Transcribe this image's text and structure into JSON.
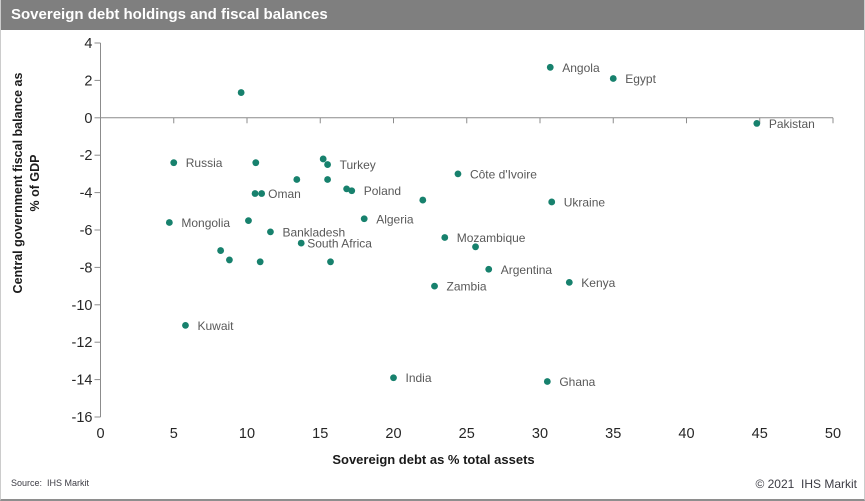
{
  "header": {
    "title": "Sovereign debt holdings and fiscal balances"
  },
  "footer": {
    "source": "Source:  IHS Markit",
    "copyright": "© 2021  IHS Markit"
  },
  "colors": {
    "titlebar_bg": "#7f7f7f",
    "titlebar_text": "#ffffff",
    "dot": "#17816d",
    "axis_line": "#8c8c8c",
    "tick_label": "#262626",
    "point_label": "#595959"
  },
  "chart_data": {
    "type": "scatter",
    "title": "Sovereign debt holdings and fiscal balances",
    "xlabel": "Sovereign debt as % total assets",
    "ylabel": "Central government fiscal balance as % of GDP",
    "ylabel_lines": [
      "Central government fiscal balance as",
      "% of GDP"
    ],
    "xlim": [
      0,
      50
    ],
    "ylim": [
      -16,
      4
    ],
    "xticks": [
      0,
      5,
      10,
      15,
      20,
      25,
      30,
      35,
      40,
      45,
      50
    ],
    "yticks": [
      4,
      2,
      0,
      -2,
      -4,
      -6,
      -8,
      -10,
      -12,
      -14,
      -16
    ],
    "grid": false,
    "legend": false,
    "points": [
      {
        "label": "",
        "x": 9.6,
        "y": 1.35
      },
      {
        "label": "Angola",
        "x": 30.7,
        "y": 2.7
      },
      {
        "label": "Egypt",
        "x": 35.0,
        "y": 2.1
      },
      {
        "label": "Pakistan",
        "x": 44.8,
        "y": -0.3
      },
      {
        "label": "Russia",
        "x": 5.0,
        "y": -2.4
      },
      {
        "label": "",
        "x": 10.6,
        "y": -2.4
      },
      {
        "label": "",
        "x": 15.2,
        "y": -2.2
      },
      {
        "label": "Turkey",
        "x": 15.5,
        "y": -2.5
      },
      {
        "label": "Côte d'Ivoire",
        "x": 24.4,
        "y": -3.0
      },
      {
        "label": "",
        "x": 13.4,
        "y": -3.3
      },
      {
        "label": "",
        "x": 15.5,
        "y": -3.3
      },
      {
        "label": "",
        "x": 10.55,
        "y": -4.05
      },
      {
        "label": "Oman",
        "x": 11.0,
        "y": -4.05,
        "dx": 6.5
      },
      {
        "label": "",
        "x": 16.8,
        "y": -3.8
      },
      {
        "label": "Poland",
        "x": 17.15,
        "y": -3.9
      },
      {
        "label": "",
        "x": 22.0,
        "y": -4.4
      },
      {
        "label": "Ukraine",
        "x": 30.8,
        "y": -4.5
      },
      {
        "label": "Mongolia",
        "x": 4.7,
        "y": -5.6
      },
      {
        "label": "",
        "x": 10.1,
        "y": -5.5
      },
      {
        "label": "Algeria",
        "x": 18.0,
        "y": -5.4
      },
      {
        "label": "Bankladesh",
        "x": 11.6,
        "y": -6.1
      },
      {
        "label": "Mozambique",
        "x": 23.5,
        "y": -6.4
      },
      {
        "label": "",
        "x": 25.6,
        "y": -6.9
      },
      {
        "label": "South Africa",
        "x": 13.7,
        "y": -6.7,
        "dx": 6
      },
      {
        "label": "",
        "x": 8.2,
        "y": -7.1
      },
      {
        "label": "",
        "x": 8.8,
        "y": -7.6
      },
      {
        "label": "",
        "x": 10.9,
        "y": -7.7
      },
      {
        "label": "",
        "x": 15.7,
        "y": -7.7
      },
      {
        "label": "Argentina",
        "x": 26.5,
        "y": -8.1
      },
      {
        "label": "Zambia",
        "x": 22.8,
        "y": -9.0
      },
      {
        "label": "Kenya",
        "x": 32.0,
        "y": -8.8
      },
      {
        "label": "Kuwait",
        "x": 5.8,
        "y": -11.1
      },
      {
        "label": "India",
        "x": 20.0,
        "y": -13.9
      },
      {
        "label": "Ghana",
        "x": 30.5,
        "y": -14.1
      }
    ]
  }
}
